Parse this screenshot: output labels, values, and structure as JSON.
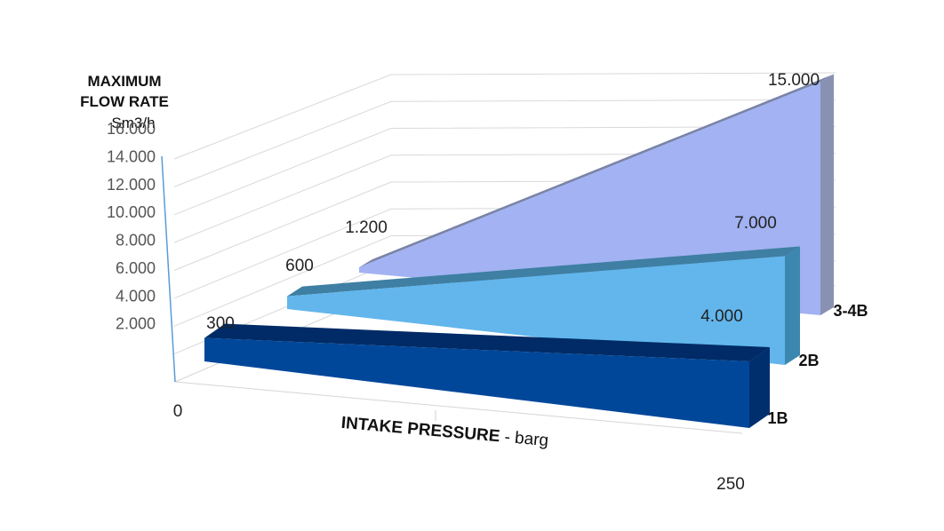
{
  "chart_data": {
    "type": "area",
    "title": "",
    "ylabel_lines": [
      "MAXIMUM",
      "FLOW RATE",
      "Sm3/h"
    ],
    "xlabel_bold": "INTAKE PRESSURE",
    "xlabel_rest": " - barg",
    "x": [
      0,
      250
    ],
    "xticks": [
      "0",
      "250"
    ],
    "ylim": [
      0,
      16000
    ],
    "yticks": [
      "2.000",
      "4.000",
      "6.000",
      "8.000",
      "10.000",
      "12.000",
      "14.000",
      "16.000"
    ],
    "series": [
      {
        "name": "1B",
        "values": [
          300,
          4000
        ],
        "start_label": "300",
        "end_label": "4.000",
        "front": "#00479a",
        "top": "#002b66",
        "side": "#002f6e"
      },
      {
        "name": "2B",
        "values": [
          600,
          7000
        ],
        "start_label": "600",
        "end_label": "7.000",
        "front": "#62b6ec",
        "top": "#3e7fa3",
        "side": "#3c87b0"
      },
      {
        "name": "3-4B",
        "values": [
          1200,
          15000
        ],
        "start_label": "1.200",
        "end_label": "15.000",
        "front": "#a2b2f2",
        "top": "#7a84a8",
        "side": "#8991b3"
      }
    ],
    "grid": true,
    "legend": "none"
  }
}
